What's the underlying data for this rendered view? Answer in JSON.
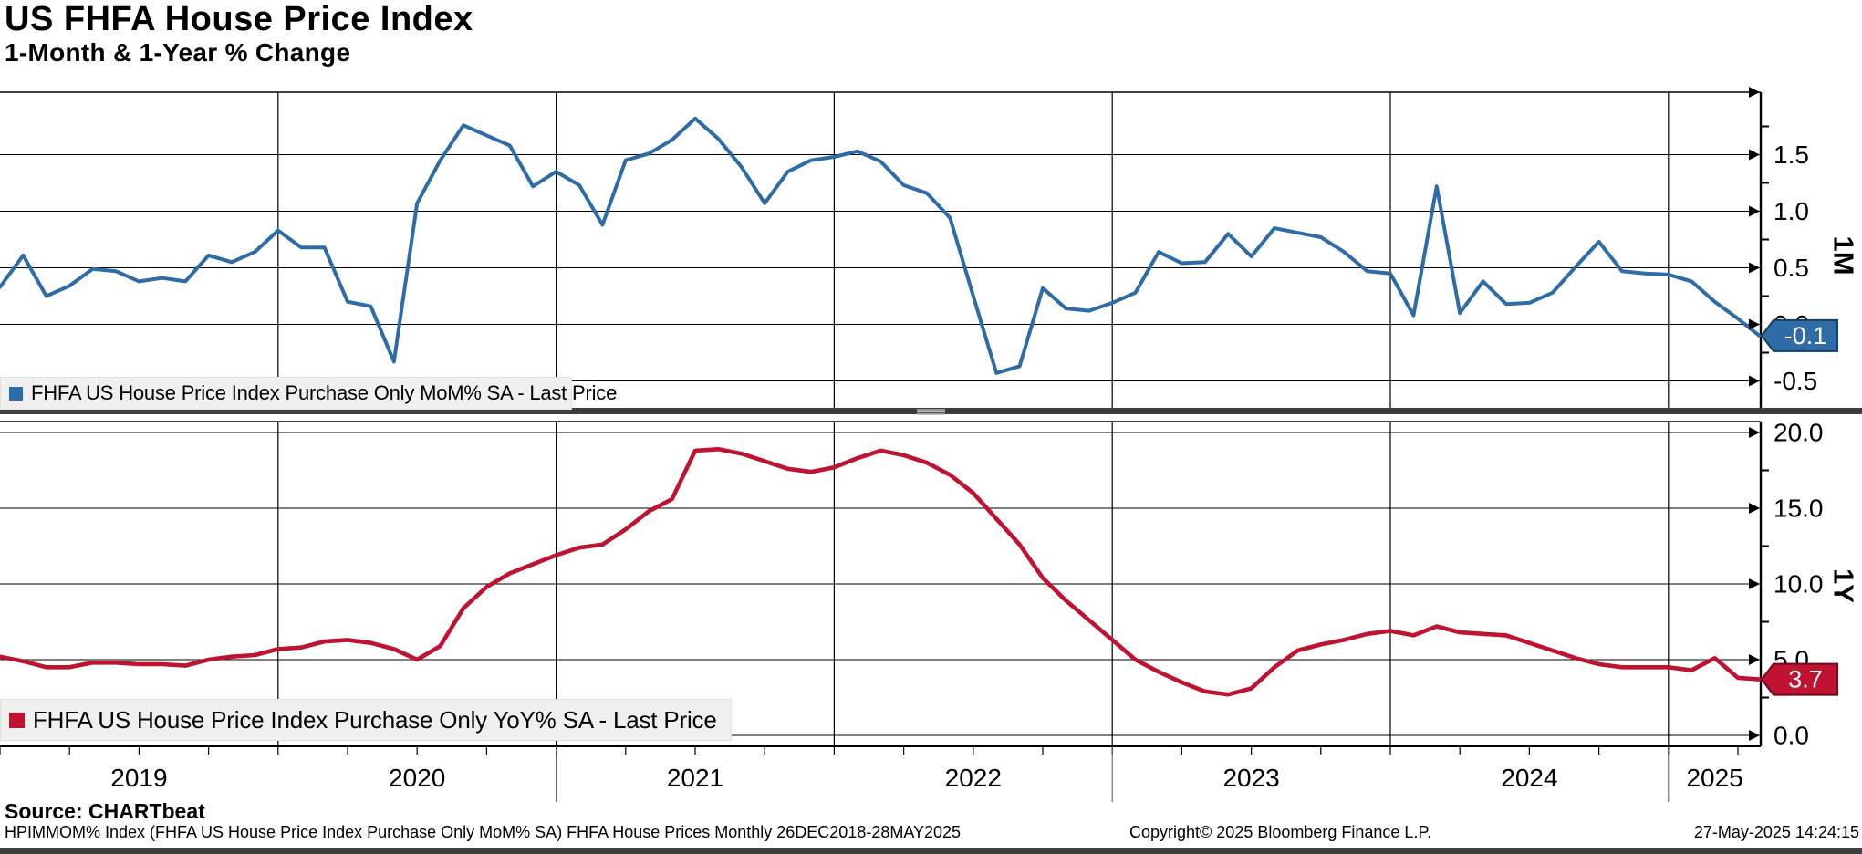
{
  "header": {
    "title": "US FHFA House Price Index",
    "subtitle": "1-Month & 1-Year % Change"
  },
  "colors": {
    "blue": "#2e6ca8",
    "blue_dark": "#1a3f66",
    "red": "#bf1331",
    "red_dark": "#72091d",
    "grid": "#000000",
    "legend_bg": "#f0f0f0",
    "separator": "#3d3d3d",
    "axis": "#000000"
  },
  "x_axis": {
    "year_labels": [
      "2019",
      "2020",
      "2021",
      "2022",
      "2023",
      "2024",
      "2025"
    ],
    "range_note": "monthly Jan 2019 - May 2025"
  },
  "chart_data": [
    {
      "type": "line",
      "panel": "top",
      "name": "FHFA US House Price Index Purchase Only MoM% SA - Last Price",
      "axis_label": "1M",
      "last_price": "-0.1",
      "start": "2019-01",
      "freq": "monthly",
      "ylim": [
        -0.77,
        2.05
      ],
      "yticks": [
        {
          "v": 1.5,
          "t": "1.5"
        },
        {
          "v": 1.0,
          "t": "1.0"
        },
        {
          "v": 0.5,
          "t": "0.5"
        },
        {
          "v": 0.0,
          "t": "0.0"
        },
        {
          "v": -0.5,
          "t": "-0.5"
        }
      ],
      "yticks_minor": [
        1.75,
        1.25,
        0.75,
        0.25,
        -0.25,
        -0.75
      ],
      "values": [
        0.33,
        0.61,
        0.25,
        0.34,
        0.49,
        0.47,
        0.38,
        0.41,
        0.38,
        0.61,
        0.55,
        0.64,
        0.83,
        0.68,
        0.68,
        0.2,
        0.16,
        -0.33,
        1.07,
        1.45,
        1.76,
        1.67,
        1.58,
        1.22,
        1.35,
        1.23,
        0.88,
        1.45,
        1.51,
        1.63,
        1.82,
        1.64,
        1.39,
        1.07,
        1.35,
        1.45,
        1.48,
        1.53,
        1.44,
        1.23,
        1.16,
        0.94,
        0.25,
        -0.43,
        -0.37,
        0.32,
        0.14,
        0.12,
        0.19,
        0.28,
        0.64,
        0.54,
        0.55,
        0.8,
        0.6,
        0.85,
        0.81,
        0.77,
        0.64,
        0.47,
        0.45,
        0.08,
        1.22,
        0.1,
        0.38,
        0.18,
        0.19,
        0.28,
        0.51,
        0.73,
        0.47,
        0.45,
        0.44,
        0.38,
        0.2,
        0.05,
        -0.1
      ]
    },
    {
      "type": "line",
      "panel": "bottom",
      "name": "FHFA US House Price Index Purchase Only YoY% SA - Last Price",
      "axis_label": "1Y",
      "last_price": "3.7",
      "start": "2019-01",
      "freq": "monthly",
      "ylim": [
        -0.72,
        21.1
      ],
      "yticks": [
        {
          "v": 20.0,
          "t": "20.0"
        },
        {
          "v": 15.0,
          "t": "15.0"
        },
        {
          "v": 10.0,
          "t": "10.0"
        },
        {
          "v": 5.0,
          "t": "5.0"
        },
        {
          "v": 0.0,
          "t": "0.0"
        }
      ],
      "yticks_minor": [
        17.5,
        12.5,
        7.5,
        2.5
      ],
      "values": [
        5.2,
        4.9,
        4.5,
        4.5,
        4.8,
        4.8,
        4.7,
        4.7,
        4.6,
        5.0,
        5.2,
        5.3,
        5.7,
        5.8,
        6.2,
        6.3,
        6.1,
        5.7,
        5.0,
        5.9,
        8.4,
        9.8,
        10.7,
        11.3,
        11.9,
        12.4,
        12.6,
        13.6,
        14.8,
        15.6,
        18.8,
        18.9,
        18.6,
        18.1,
        17.6,
        17.4,
        17.7,
        18.3,
        18.8,
        18.5,
        18.0,
        17.2,
        16.0,
        14.3,
        12.6,
        10.4,
        8.9,
        7.6,
        6.3,
        5.0,
        4.2,
        3.5,
        2.9,
        2.7,
        3.1,
        4.5,
        5.6,
        6.0,
        6.3,
        6.7,
        6.9,
        6.6,
        7.2,
        6.8,
        6.7,
        6.6,
        6.1,
        5.6,
        5.1,
        4.7,
        4.5,
        4.5,
        4.5,
        4.3,
        5.1,
        3.8,
        3.7
      ]
    }
  ],
  "footer": {
    "source": "Source: CHARTbeat",
    "note": "HPIMMOM% Index (FHFA US House Price Index Purchase Only MoM% SA) FHFA House Prices  Monthly 26DEC2018-28MAY2025",
    "copyright": "Copyright© 2025 Bloomberg Finance L.P.",
    "timestamp": "27-May-2025 14:24:15"
  }
}
